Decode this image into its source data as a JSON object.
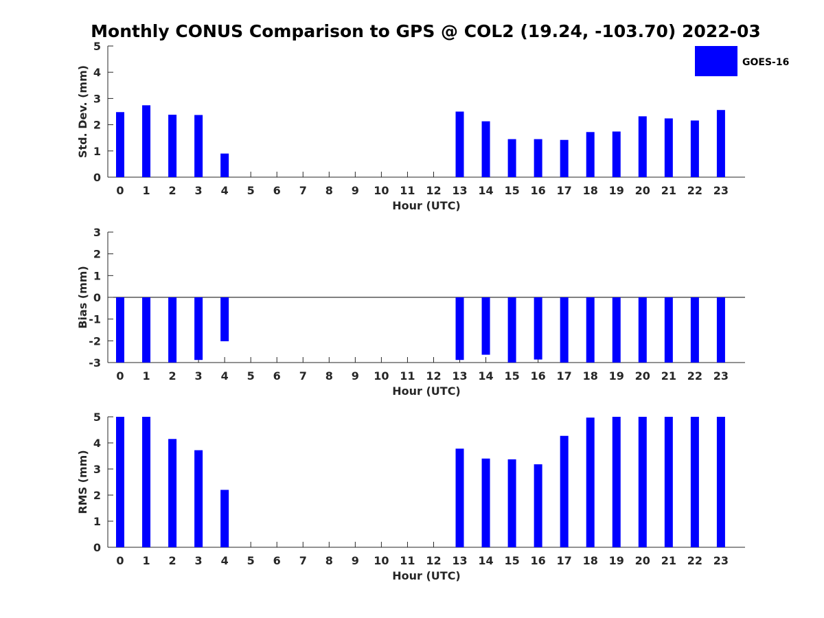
{
  "figure": {
    "title": "Monthly CONUS Comparison to GPS @ COL2 (19.24, -103.70) 2022-03"
  },
  "legend": {
    "label": "GOES-16",
    "color": "#0000ff"
  },
  "chart_data": [
    {
      "type": "bar",
      "name": "std-dev",
      "xlabel": "Hour (UTC)",
      "ylabel": "Std. Dev. (mm)",
      "ylim": [
        0,
        5
      ],
      "yticks": [
        "0",
        "1",
        "2",
        "3",
        "4",
        "5"
      ],
      "categories": [
        "0",
        "1",
        "2",
        "3",
        "4",
        "5",
        "6",
        "7",
        "8",
        "9",
        "10",
        "11",
        "12",
        "13",
        "14",
        "15",
        "16",
        "17",
        "18",
        "19",
        "20",
        "21",
        "22",
        "23"
      ],
      "series": [
        {
          "name": "GOES-16",
          "values": [
            2.48,
            2.74,
            2.38,
            2.37,
            0.9,
            null,
            null,
            null,
            null,
            null,
            null,
            null,
            null,
            2.5,
            2.13,
            1.45,
            1.45,
            1.42,
            1.72,
            1.74,
            2.32,
            2.24,
            2.16,
            2.56
          ]
        }
      ]
    },
    {
      "type": "bar",
      "name": "bias",
      "xlabel": "Hour (UTC)",
      "ylabel": "Bias (mm)",
      "ylim": [
        -3,
        3
      ],
      "yticks": [
        "-3",
        "-2",
        "-1",
        "0",
        "1",
        "2",
        "3"
      ],
      "categories": [
        "0",
        "1",
        "2",
        "3",
        "4",
        "5",
        "6",
        "7",
        "8",
        "9",
        "10",
        "11",
        "12",
        "13",
        "14",
        "15",
        "16",
        "17",
        "18",
        "19",
        "20",
        "21",
        "22",
        "23"
      ],
      "series": [
        {
          "name": "GOES-16",
          "values": [
            -3.0,
            -3.0,
            -3.0,
            -2.88,
            -2.02,
            null,
            null,
            null,
            null,
            null,
            null,
            null,
            null,
            -2.88,
            -2.64,
            -3.0,
            -2.86,
            -3.0,
            -3.0,
            -3.0,
            -3.0,
            -3.0,
            -3.0,
            -3.0
          ]
        }
      ]
    },
    {
      "type": "bar",
      "name": "rms",
      "xlabel": "Hour (UTC)",
      "ylabel": "RMS (mm)",
      "ylim": [
        0,
        5
      ],
      "yticks": [
        "0",
        "1",
        "2",
        "3",
        "4",
        "5"
      ],
      "categories": [
        "0",
        "1",
        "2",
        "3",
        "4",
        "5",
        "6",
        "7",
        "8",
        "9",
        "10",
        "11",
        "12",
        "13",
        "14",
        "15",
        "16",
        "17",
        "18",
        "19",
        "20",
        "21",
        "22",
        "23"
      ],
      "series": [
        {
          "name": "GOES-16",
          "values": [
            5.0,
            5.0,
            4.15,
            3.72,
            2.2,
            null,
            null,
            null,
            null,
            null,
            null,
            null,
            null,
            3.78,
            3.4,
            3.37,
            3.18,
            4.27,
            4.97,
            5.0,
            5.0,
            5.0,
            5.0,
            5.0
          ]
        }
      ]
    }
  ]
}
